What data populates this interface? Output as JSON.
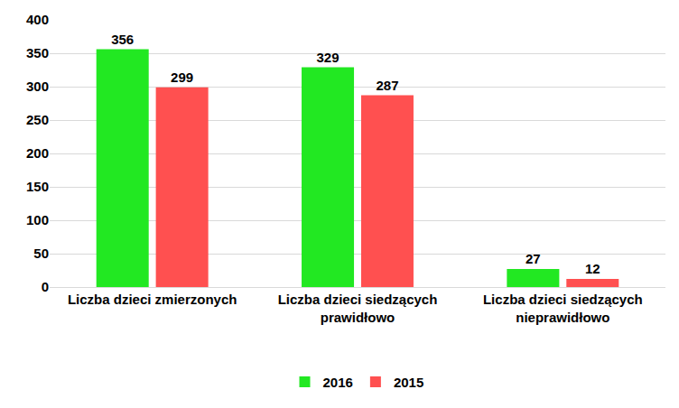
{
  "chart_data": {
    "type": "bar",
    "categories": [
      "Liczba dzieci zmierzonych",
      "Liczba dzieci siedzących prawidłowo",
      "Liczba dzieci siedzących nieprawidłowo"
    ],
    "series": [
      {
        "name": "2016",
        "color": "#22E822",
        "values": [
          356,
          329,
          27
        ]
      },
      {
        "name": "2015",
        "color": "#FF5050",
        "values": [
          299,
          287,
          12
        ]
      }
    ],
    "ylim": [
      0,
      400
    ],
    "yticks": [
      0,
      50,
      100,
      150,
      200,
      250,
      300,
      350,
      400
    ],
    "grid": true,
    "legend": "bottom",
    "data_labels": true
  }
}
